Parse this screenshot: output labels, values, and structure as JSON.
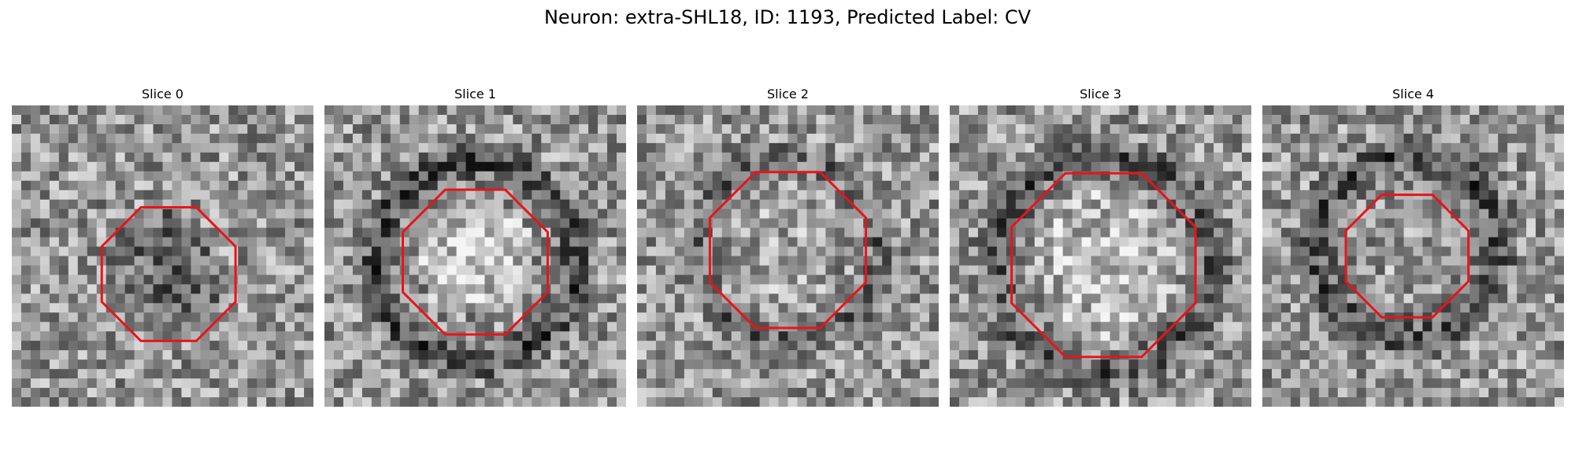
{
  "figure": {
    "title": "Neuron: extra-SHL18, ID: 1193, Predicted Label: CV"
  },
  "colors": {
    "contour": "#e8141b",
    "background": "#ffffff",
    "text": "#000000"
  },
  "panels": [
    {
      "title": "Slice 0",
      "contour_shape": "octagon",
      "center_appearance": "dark"
    },
    {
      "title": "Slice 1",
      "contour_shape": "octagon",
      "center_appearance": "bright"
    },
    {
      "title": "Slice 2",
      "contour_shape": "octagon",
      "center_appearance": "mixed"
    },
    {
      "title": "Slice 3",
      "contour_shape": "octagon",
      "center_appearance": "bright"
    },
    {
      "title": "Slice 4",
      "contour_shape": "octagon",
      "center_appearance": "mixed"
    }
  ]
}
